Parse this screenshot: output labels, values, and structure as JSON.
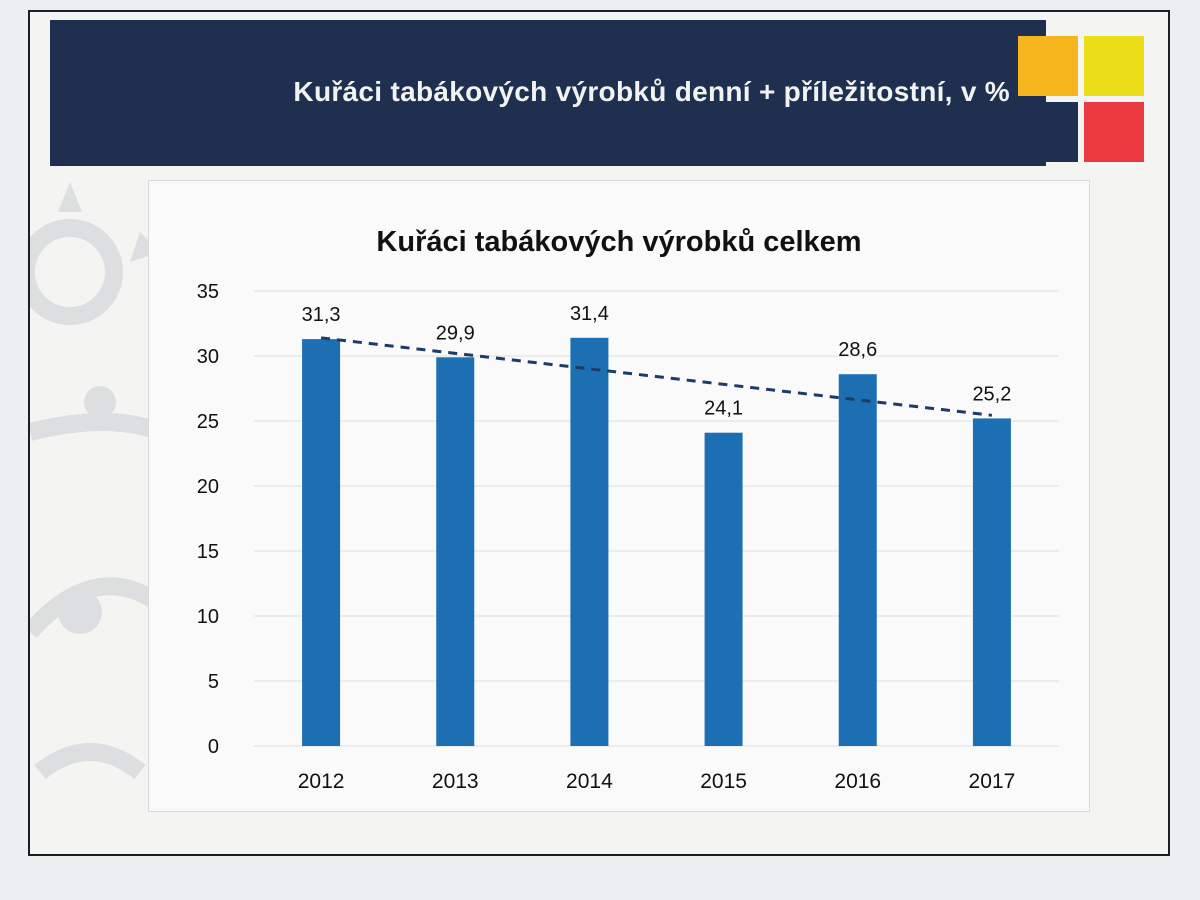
{
  "slide": {
    "header_title": "Kuřáci tabákových výrobků denní + příležitostní, v %",
    "colors": {
      "header_bg": "#1e2f4f",
      "grid_orange": "#f6b51c",
      "grid_yellow": "#ecdd19",
      "grid_navy": "#1e2f4f",
      "grid_red": "#ea3a3f"
    }
  },
  "chart_data": {
    "type": "bar",
    "title": "Kuřáci tabákových výrobků celkem",
    "categories": [
      "2012",
      "2013",
      "2014",
      "2015",
      "2016",
      "2017"
    ],
    "values": [
      31.3,
      29.9,
      31.4,
      24.1,
      28.6,
      25.2
    ],
    "value_labels": [
      "31,3",
      "29,9",
      "31,4",
      "24,1",
      "28,6",
      "25,2"
    ],
    "ylim": [
      0,
      35
    ],
    "yticks": [
      0,
      5,
      10,
      15,
      20,
      25,
      30,
      35
    ],
    "xlabel": "",
    "ylabel": "",
    "grid": true,
    "legend": "none",
    "trendline": {
      "type": "linear",
      "style": "dashed",
      "color": "#1e3a66"
    },
    "bar_color": "#1d6fb3"
  }
}
